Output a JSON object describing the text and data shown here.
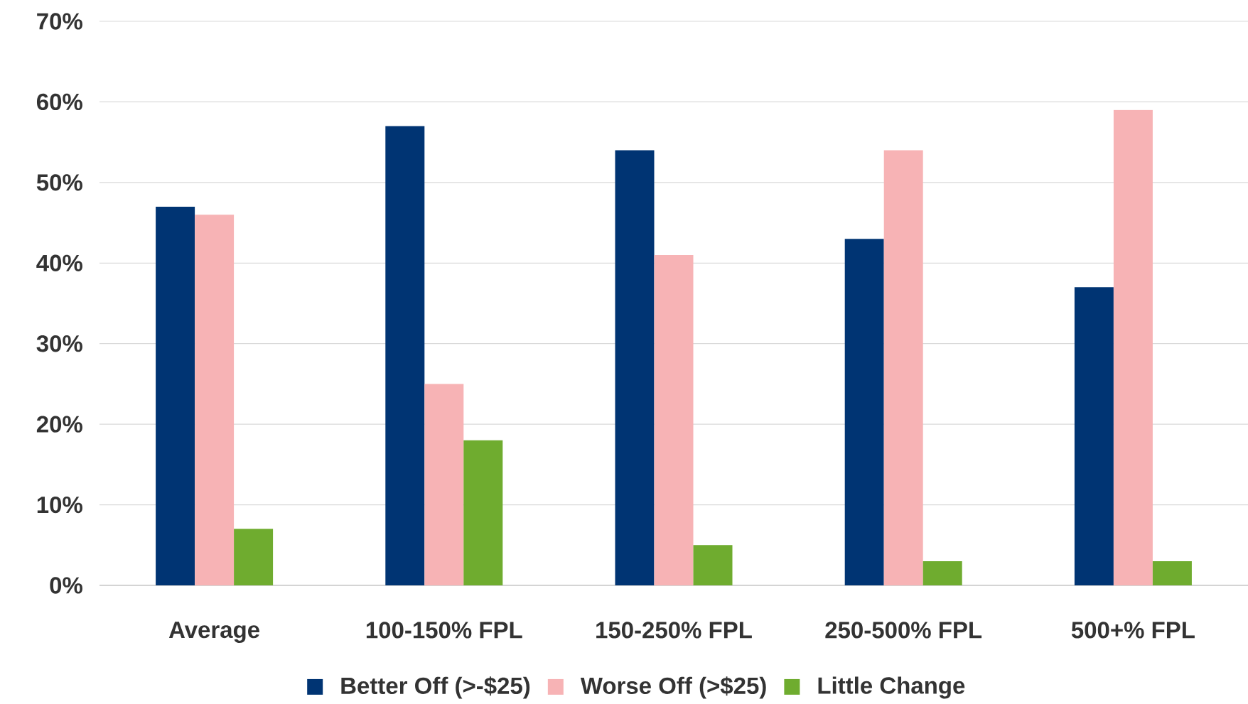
{
  "chart_data": {
    "type": "bar",
    "categories": [
      "Average",
      "100-150% FPL",
      "150-250% FPL",
      "250-500% FPL",
      "500+% FPL"
    ],
    "series": [
      {
        "name": "Better Off (>-$25)",
        "color": "#003473",
        "values": [
          47,
          57,
          54,
          43,
          37
        ]
      },
      {
        "name": "Worse Off (>$25)",
        "color": "#f7b3b5",
        "values": [
          46,
          25,
          41,
          54,
          59
        ]
      },
      {
        "name": "Little Change",
        "color": "#6fac2f",
        "values": [
          7,
          18,
          5,
          3,
          3
        ]
      }
    ],
    "ylim": [
      0,
      70
    ],
    "yticks": [
      {
        "value": 0,
        "label": "0%"
      },
      {
        "value": 10,
        "label": "10%"
      },
      {
        "value": 20,
        "label": "20%"
      },
      {
        "value": 30,
        "label": "30%"
      },
      {
        "value": 40,
        "label": "40%"
      },
      {
        "value": 50,
        "label": "50%"
      },
      {
        "value": 60,
        "label": "60%"
      },
      {
        "value": 70,
        "label": "70%"
      }
    ],
    "grid": "y",
    "legend": "bottom"
  }
}
